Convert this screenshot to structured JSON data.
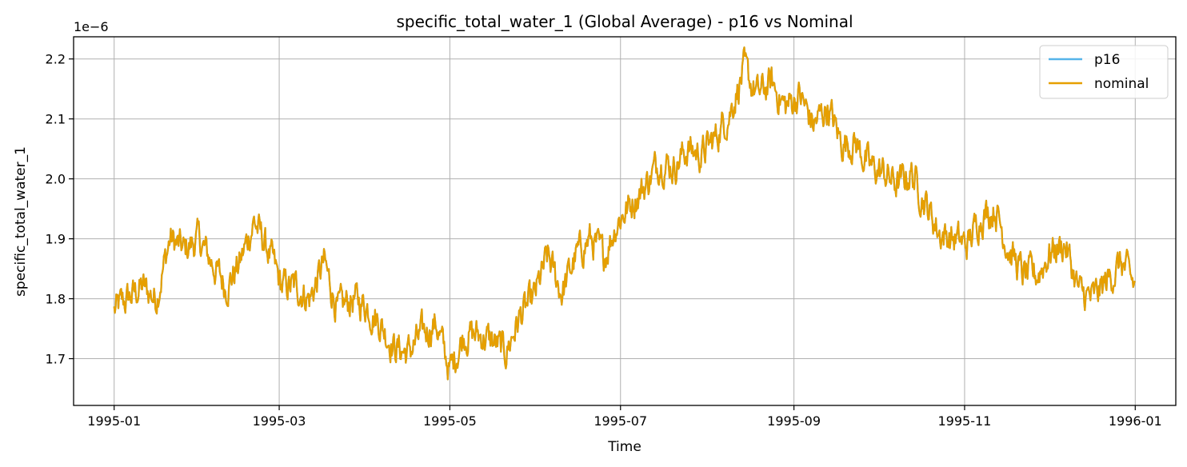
{
  "chart_data": {
    "type": "line",
    "title": "specific_total_water_1 (Global Average) - p16 vs Nominal",
    "xlabel": "Time",
    "ylabel": "specific_total_water_1",
    "y_scale_label": "1e−6",
    "y_multiplier": 1e-06,
    "ylim": [
      1.622,
      2.237
    ],
    "xlim_days": [
      -14.5,
      379.5
    ],
    "x_ticks": [
      {
        "label": "1995-01",
        "day": 0
      },
      {
        "label": "1995-03",
        "day": 59
      },
      {
        "label": "1995-05",
        "day": 120
      },
      {
        "label": "1995-07",
        "day": 181
      },
      {
        "label": "1995-09",
        "day": 243
      },
      {
        "label": "1995-11",
        "day": 304
      },
      {
        "label": "1996-01",
        "day": 365
      }
    ],
    "y_ticks": [
      {
        "label": "1.7",
        "value": 1.7
      },
      {
        "label": "1.8",
        "value": 1.8
      },
      {
        "label": "1.9",
        "value": 1.9
      },
      {
        "label": "2.0",
        "value": 2.0
      },
      {
        "label": "2.1",
        "value": 2.1
      },
      {
        "label": "2.2",
        "value": 2.2
      }
    ],
    "grid": true,
    "legend_position": "top-right",
    "series": [
      {
        "name": "p16",
        "color": "#56b4e9",
        "x_days": [
          0,
          5,
          10,
          15,
          20,
          25,
          30,
          35,
          40,
          45,
          50,
          55,
          60,
          65,
          70,
          75,
          80,
          85,
          90,
          95,
          100,
          105,
          110,
          115,
          120,
          125,
          130,
          135,
          140,
          145,
          150,
          155,
          160,
          165,
          170,
          175,
          180,
          185,
          190,
          195,
          200,
          205,
          210,
          215,
          220,
          225,
          230,
          235,
          240,
          245,
          250,
          255,
          260,
          265,
          270,
          275,
          280,
          285,
          290,
          295,
          300,
          305,
          310,
          315,
          320,
          325,
          330,
          335,
          340,
          345,
          350,
          355,
          360,
          365
        ],
        "values": [
          1.78,
          1.8,
          1.82,
          1.8,
          1.9,
          1.88,
          1.9,
          1.86,
          1.82,
          1.86,
          1.93,
          1.88,
          1.82,
          1.82,
          1.8,
          1.86,
          1.78,
          1.8,
          1.79,
          1.76,
          1.72,
          1.71,
          1.74,
          1.76,
          1.68,
          1.74,
          1.74,
          1.73,
          1.71,
          1.77,
          1.8,
          1.87,
          1.81,
          1.87,
          1.9,
          1.87,
          1.93,
          1.96,
          1.99,
          2.03,
          2.02,
          2.05,
          2.04,
          2.07,
          2.11,
          2.18,
          2.14,
          2.16,
          2.12,
          2.14,
          2.09,
          2.12,
          2.06,
          2.06,
          2.02,
          2.01,
          1.99,
          2.01,
          1.96,
          1.91,
          1.9,
          1.89,
          1.94,
          1.95,
          1.88,
          1.84,
          1.84,
          1.88,
          1.89,
          1.81,
          1.8,
          1.83,
          1.86,
          1.82
        ]
      },
      {
        "name": "nominal",
        "color": "#e69f00",
        "x_days": [
          0,
          5,
          10,
          15,
          20,
          25,
          30,
          35,
          40,
          45,
          50,
          55,
          60,
          65,
          70,
          75,
          80,
          85,
          90,
          95,
          100,
          105,
          110,
          115,
          120,
          125,
          130,
          135,
          140,
          145,
          150,
          155,
          160,
          165,
          170,
          175,
          180,
          185,
          190,
          195,
          200,
          205,
          210,
          215,
          220,
          225,
          230,
          235,
          240,
          245,
          250,
          255,
          260,
          265,
          270,
          275,
          280,
          285,
          290,
          295,
          300,
          305,
          310,
          315,
          320,
          325,
          330,
          335,
          340,
          345,
          350,
          355,
          360,
          365
        ],
        "values": [
          1.78,
          1.8,
          1.82,
          1.8,
          1.9,
          1.88,
          1.9,
          1.86,
          1.82,
          1.86,
          1.93,
          1.88,
          1.82,
          1.82,
          1.8,
          1.86,
          1.78,
          1.8,
          1.79,
          1.76,
          1.72,
          1.71,
          1.74,
          1.76,
          1.68,
          1.74,
          1.74,
          1.73,
          1.71,
          1.77,
          1.8,
          1.87,
          1.81,
          1.87,
          1.9,
          1.87,
          1.93,
          1.96,
          1.99,
          2.03,
          2.02,
          2.05,
          2.04,
          2.07,
          2.11,
          2.18,
          2.14,
          2.16,
          2.12,
          2.14,
          2.09,
          2.12,
          2.06,
          2.06,
          2.02,
          2.01,
          1.99,
          2.01,
          1.96,
          1.91,
          1.9,
          1.89,
          1.94,
          1.95,
          1.88,
          1.84,
          1.84,
          1.88,
          1.89,
          1.81,
          1.8,
          1.83,
          1.86,
          1.82
        ]
      }
    ]
  }
}
